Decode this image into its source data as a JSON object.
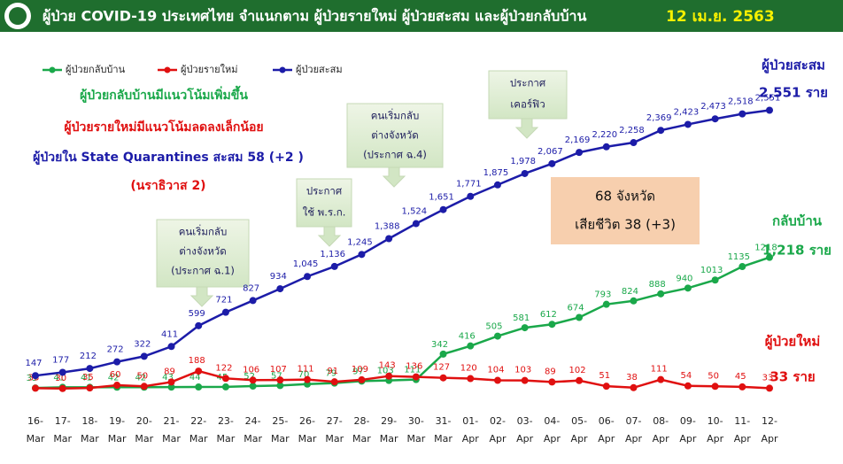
{
  "chart_data": {
    "type": "line",
    "title": "ผู้ป่วย COVID-19 ประเทศไทย จำแนกตาม ผู้ป่วยรายใหม่ ผู้ป่วยสะสม  และผู้ป่วยกลับบ้าน",
    "date": "12 เม.ย. 2563",
    "categories": [
      "16-Mar",
      "17-Mar",
      "18-Mar",
      "19-Mar",
      "20-Mar",
      "21-Mar",
      "22-Mar",
      "23-Mar",
      "24-Mar",
      "25-Mar",
      "26-Mar",
      "27-Mar",
      "28-Mar",
      "29-Mar",
      "30-Mar",
      "31-Mar",
      "01-Apr",
      "02-Apr",
      "03-Apr",
      "04-Apr",
      "05-Apr",
      "06-Apr",
      "07-Apr",
      "08-Apr",
      "09-Apr",
      "10-Apr",
      "11-Apr",
      "12-Apr"
    ],
    "ylim": [
      -60,
      2900
    ],
    "series": [
      {
        "name": "ผู้ป่วยกลับบ้าน",
        "color": "#1aa84a",
        "values": [
          35,
          41,
          41,
          42,
          42,
          43,
          44,
          45,
          52,
          57,
          70,
          79,
          97,
          103,
          111,
          342,
          416,
          505,
          581,
          612,
          674,
          793,
          824,
          888,
          940,
          1013,
          1135,
          1218
        ]
      },
      {
        "name": "ผู้ป่วยรายใหม่",
        "color": "#e01010",
        "values": [
          33,
          30,
          35,
          60,
          50,
          89,
          188,
          122,
          106,
          107,
          111,
          91,
          109,
          143,
          136,
          127,
          120,
          104,
          103,
          89,
          102,
          51,
          38,
          111,
          54,
          50,
          45,
          33
        ]
      },
      {
        "name": "ผู้ป่วยสะสม",
        "color": "#1c1ca8",
        "values": [
          147,
          177,
          212,
          272,
          322,
          411,
          599,
          721,
          827,
          934,
          1045,
          1136,
          1245,
          1388,
          1524,
          1651,
          1771,
          1875,
          1978,
          2067,
          2169,
          2220,
          2258,
          2369,
          2423,
          2473,
          2518,
          2551
        ],
        "value_labels": [
          "147",
          "177",
          "212",
          "272",
          "322",
          "411",
          "599",
          "721",
          "827",
          "934",
          "1,045",
          "1,136",
          "1,245",
          "1,388",
          "1,524",
          "1,651",
          "1,771",
          "1,875",
          "1,978",
          "2,067",
          "2,169",
          "2,220",
          "2,258",
          "2,369",
          "2,423",
          "2,473",
          "2,518",
          "2,551"
        ]
      }
    ],
    "notes": [
      {
        "text": "ผู้ป่วยกลับบ้านมีแนวโน้มเพิ่มขึ้น",
        "color": "#1aa84a"
      },
      {
        "text": "ผู้ป่วยรายใหม่มีแนวโน้มลดลงเล็กน้อย",
        "color": "#e01010"
      },
      {
        "text": "ผู้ป่วยใน State Quarantines สะสม 58 (+2 )",
        "color": "#1c1ca8"
      },
      {
        "text": "(นราธิวาส 2)",
        "color": "#e01010"
      }
    ],
    "callouts": [
      [
        "คนเริ่มกลับ",
        "ต่างจังหวัด",
        "(ประกาศ ฉ.1)"
      ],
      [
        "ประกาศ",
        "ใช้ พ.ร.ก."
      ],
      [
        "คนเริ่มกลับ",
        "ต่างจังหวัด",
        "(ประกาศ ฉ.4)"
      ],
      [
        "ประกาศ",
        "เคอร์ฟิว"
      ]
    ],
    "summary": [
      "68 จังหวัด",
      "เสียชีวิต 38 (+3)"
    ],
    "end_labels": [
      {
        "name": "ผู้ป่วยสะสม",
        "total": "2,551 ราย"
      },
      {
        "name": "กลับบ้าน",
        "total": "1,218 ราย"
      },
      {
        "name": "ผู้ป่วยใหม่",
        "total": "33 ราย"
      }
    ]
  }
}
